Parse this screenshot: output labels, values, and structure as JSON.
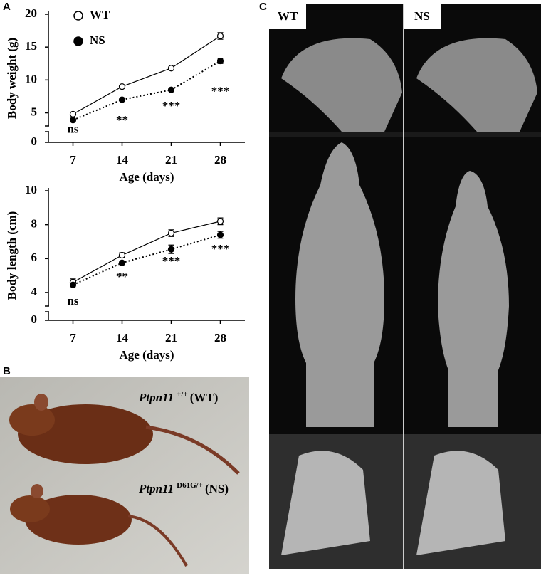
{
  "panels": {
    "a": "A",
    "b": "B",
    "c": "C"
  },
  "chart_data": [
    {
      "type": "line",
      "ylabel": "Body weight (g)",
      "xlabel": "Age (days)",
      "x": [
        7,
        14,
        21,
        28
      ],
      "xlim": [
        3.5,
        31.5
      ],
      "xticks": [
        7,
        14,
        21,
        28
      ],
      "ylim": [
        3,
        20
      ],
      "yticks": [
        5,
        10,
        15,
        20
      ],
      "break_tick": 0,
      "legend": "top-left",
      "series": [
        {
          "name": "WT",
          "color": "#000000",
          "marker": "open",
          "dash": false,
          "values": [
            4.8,
            9.0,
            11.8,
            16.7
          ],
          "errors": [
            0.2,
            0.2,
            0.2,
            0.5
          ]
        },
        {
          "name": "NS",
          "color": "#000000",
          "marker": "filled",
          "dash": true,
          "values": [
            3.9,
            7.0,
            8.5,
            12.9
          ],
          "errors": [
            0.2,
            0.2,
            0.2,
            0.4
          ]
        }
      ],
      "significance": [
        "ns",
        "**",
        "***",
        "***"
      ]
    },
    {
      "type": "line",
      "ylabel": "Body length (cm)",
      "xlabel": "Age (days)",
      "x": [
        7,
        14,
        21,
        28
      ],
      "xlim": [
        3.5,
        31.5
      ],
      "xticks": [
        7,
        14,
        21,
        28
      ],
      "ylim": [
        3.2,
        10
      ],
      "yticks": [
        4,
        6,
        8,
        10
      ],
      "break_tick": 0,
      "series": [
        {
          "name": "WT",
          "color": "#000000",
          "marker": "open",
          "dash": false,
          "values": [
            4.6,
            6.2,
            7.5,
            8.2
          ],
          "errors": [
            0.2,
            0.15,
            0.2,
            0.2
          ]
        },
        {
          "name": "NS",
          "color": "#000000",
          "marker": "filled",
          "dash": true,
          "values": [
            4.45,
            5.75,
            6.55,
            7.4
          ],
          "errors": [
            0.1,
            0.1,
            0.25,
            0.2
          ]
        }
      ],
      "significance": [
        "ns",
        "**",
        "***",
        "***"
      ]
    }
  ],
  "photo": {
    "wt": {
      "gene": "Ptpn11",
      "allele": "+/+",
      "label": "(WT)"
    },
    "ns": {
      "gene": "Ptpn11",
      "allele": "D61G/+",
      "label": "(NS)"
    }
  },
  "xray": {
    "left": "WT",
    "right": "NS"
  }
}
